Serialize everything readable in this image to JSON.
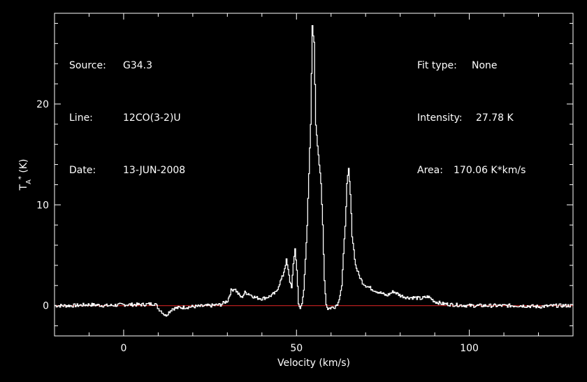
{
  "chart_data": {
    "type": "line",
    "xlabel": "Velocity (km/s)",
    "ylabel": "T_A^* (K)",
    "xlim": [
      -20,
      130
    ],
    "ylim": [
      -3,
      29
    ],
    "x_ticks": [
      0,
      50,
      100
    ],
    "y_ticks": [
      0,
      10,
      20
    ],
    "grid": false,
    "baseline": 0,
    "series": [
      {
        "x": [
          -20,
          -15,
          -10,
          -5,
          0,
          5,
          9,
          10,
          11,
          12,
          14,
          16,
          20,
          25,
          28,
          30,
          31,
          32,
          33,
          34,
          35,
          36,
          38,
          40,
          42,
          44,
          45,
          46,
          47,
          47.5,
          48,
          48.5,
          49,
          49.5,
          50,
          50.5,
          51,
          51.5,
          52,
          53,
          54,
          54.5,
          55,
          55.5,
          56,
          56.5,
          57,
          57.5,
          58,
          58.5,
          59,
          60,
          61,
          62,
          63,
          64,
          64.5,
          65,
          65.5,
          66,
          67,
          68,
          69,
          70,
          72,
          74,
          76,
          78,
          80,
          82,
          84,
          86,
          88,
          90,
          92,
          95,
          100,
          105,
          110,
          115,
          120,
          125,
          130
        ],
        "y": [
          0,
          0,
          0.1,
          0,
          0.1,
          0.1,
          0.2,
          -0.3,
          -0.6,
          -1,
          -0.3,
          -0.2,
          -0.1,
          0,
          0.1,
          0.5,
          1.5,
          1.7,
          1.2,
          0.8,
          1.3,
          1.2,
          0.8,
          0.7,
          0.9,
          1.3,
          2.2,
          3,
          4.5,
          3.5,
          2.4,
          1.9,
          4,
          5.7,
          3.5,
          0.3,
          -0.4,
          0.2,
          1.5,
          8,
          18,
          27.8,
          26,
          18,
          16,
          14,
          12,
          8,
          2.5,
          0.1,
          -0.3,
          -0.2,
          -0.1,
          0.3,
          2,
          8,
          12,
          13.5,
          11,
          7,
          4,
          3,
          2.3,
          2,
          1.6,
          1.3,
          1,
          1.4,
          1,
          0.8,
          0.8,
          0.7,
          0.9,
          0.4,
          0.2,
          0.1,
          0,
          0,
          0,
          0,
          -0.1,
          0,
          0
        ]
      }
    ]
  },
  "info_left": {
    "source_label": "Source:",
    "source_value": "G34.3",
    "line_label": "Line:",
    "line_value": "12CO(3-2)U",
    "date_label": "Date:",
    "date_value": "13-JUN-2008"
  },
  "info_right": {
    "fit_label": "Fit type:",
    "fit_value": "None",
    "intensity_label": "Intensity:",
    "intensity_value": "27.78 K",
    "area_label": "Area:",
    "area_value": "170.06 K*km/s"
  },
  "colors": {
    "background": "#000000",
    "axes": "#ffffff",
    "spectrum": "#ffffff",
    "baseline": "#cc2222"
  }
}
